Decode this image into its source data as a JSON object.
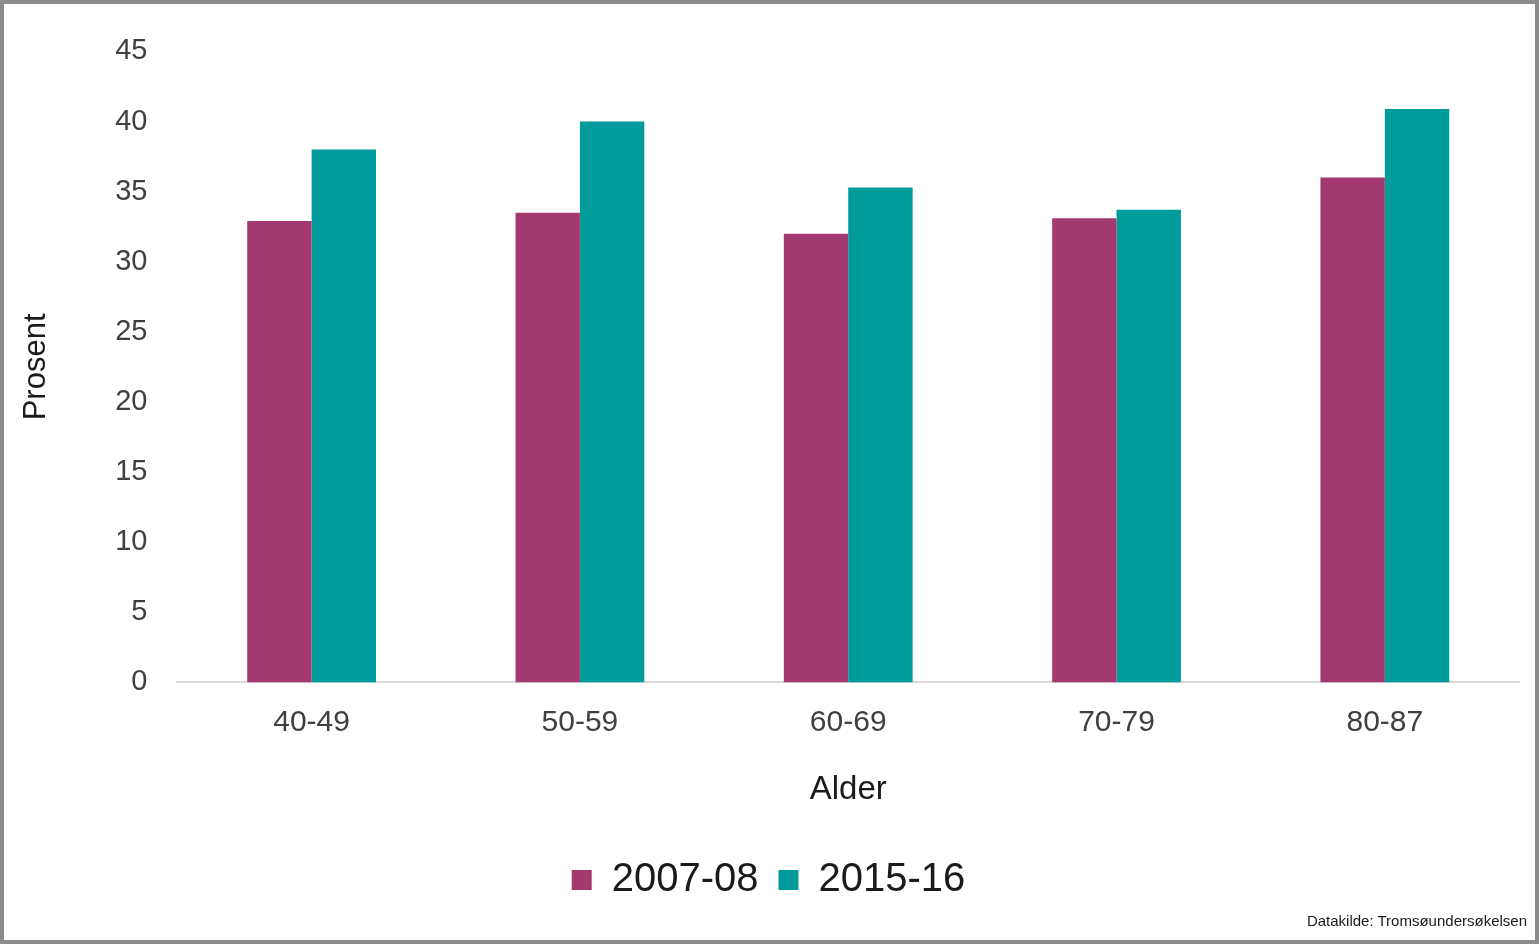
{
  "chart_data": {
    "type": "bar",
    "xlabel": "Alder",
    "ylabel": "Prosent",
    "categories": [
      "40-49",
      "50-59",
      "60-69",
      "70-79",
      "80-87"
    ],
    "series": [
      {
        "name": "2007-08",
        "color": "#a33a6f",
        "values": [
          32.9,
          33.5,
          32.0,
          33.1,
          36.0
        ]
      },
      {
        "name": "2015-16",
        "color": "#009b9b",
        "values": [
          38.0,
          40.0,
          35.3,
          33.7,
          40.9
        ]
      }
    ],
    "ylim": [
      0,
      45
    ],
    "yticks": [
      0,
      5,
      10,
      15,
      20,
      25,
      30,
      35,
      40,
      45
    ],
    "legend": "bottom",
    "annotations": [
      "Datakilde: Tromsøundersøkelsen"
    ]
  }
}
